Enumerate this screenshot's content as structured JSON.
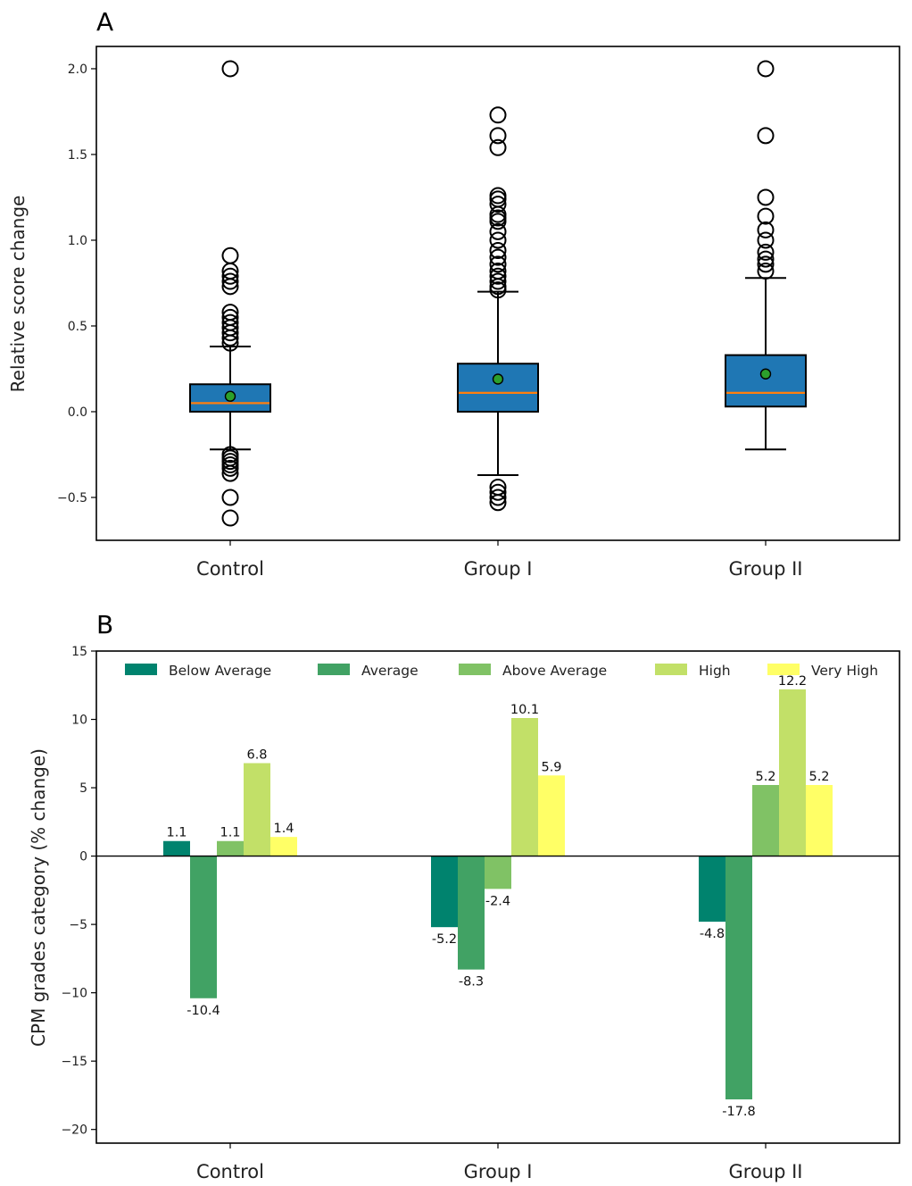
{
  "chart_data": [
    {
      "panel": "A",
      "type": "box",
      "ylabel": "Relative score change",
      "xlabel": "",
      "ylim": [
        -0.75,
        2.13
      ],
      "yticks": [
        -0.5,
        0.0,
        0.5,
        1.0,
        1.5,
        2.0
      ],
      "ytick_labels": [
        "−0.5",
        "0.0",
        "0.5",
        "1.0",
        "1.5",
        "2.0"
      ],
      "categories": [
        "Control",
        "Group I",
        "Group II"
      ],
      "boxes": [
        {
          "category": "Control",
          "q1": 0.0,
          "median": 0.05,
          "q3": 0.16,
          "mean": 0.09,
          "whisker_low": -0.22,
          "whisker_high": 0.38,
          "outliers": [
            2.0,
            0.91,
            0.82,
            0.79,
            0.76,
            0.73,
            0.58,
            0.55,
            0.52,
            0.49,
            0.46,
            0.43,
            0.4,
            -0.25,
            -0.27,
            -0.29,
            -0.31,
            -0.33,
            -0.36,
            -0.5,
            -0.62
          ]
        },
        {
          "category": "Group I",
          "q1": 0.0,
          "median": 0.11,
          "q3": 0.28,
          "mean": 0.19,
          "whisker_low": -0.37,
          "whisker_high": 0.7,
          "outliers": [
            1.73,
            1.61,
            1.54,
            1.26,
            1.24,
            1.21,
            1.15,
            1.13,
            1.11,
            1.05,
            1.0,
            0.94,
            0.9,
            0.86,
            0.82,
            0.79,
            0.76,
            0.73,
            0.71,
            -0.44,
            -0.47,
            -0.5,
            -0.53
          ]
        },
        {
          "category": "Group II",
          "q1": 0.03,
          "median": 0.11,
          "q3": 0.33,
          "mean": 0.22,
          "whisker_low": -0.22,
          "whisker_high": 0.78,
          "outliers": [
            2.0,
            1.61,
            1.25,
            1.14,
            1.06,
            1.0,
            0.93,
            0.89,
            0.86,
            0.82
          ]
        }
      ],
      "colors": {
        "box": "#1f77b4",
        "median": "#ff7f0e",
        "mean": "#2ca02c"
      },
      "grid": false
    },
    {
      "panel": "B",
      "type": "bar",
      "ylabel": "CPM grades category (% change)",
      "xlabel": "",
      "ylim": [
        -21,
        15
      ],
      "yticks": [
        -20,
        -15,
        -10,
        -5,
        0,
        5,
        10,
        15
      ],
      "ytick_labels": [
        "−20",
        "−15",
        "−10",
        "−5",
        "0",
        "5",
        "10",
        "15"
      ],
      "categories": [
        "Control",
        "Group I",
        "Group II"
      ],
      "series": [
        {
          "name": "Below Average",
          "color": "#00836e",
          "values": [
            1.1,
            -5.2,
            -4.8
          ],
          "labels": [
            "1.1",
            "-5.2",
            "-4.8"
          ]
        },
        {
          "name": "Average",
          "color": "#41a264",
          "values": [
            -10.4,
            -8.3,
            -17.8
          ],
          "labels": [
            "-10.4",
            "-8.3",
            "-17.8"
          ]
        },
        {
          "name": "Above Average",
          "color": "#80c265",
          "values": [
            1.1,
            -2.4,
            5.2
          ],
          "labels": [
            "1.1",
            "-2.4",
            "5.2"
          ]
        },
        {
          "name": "High",
          "color": "#c2e068",
          "values": [
            6.8,
            10.1,
            12.2
          ],
          "labels": [
            "6.8",
            "10.1",
            "12.2"
          ]
        },
        {
          "name": "Very High",
          "color": "#ffff66",
          "values": [
            1.4,
            5.9,
            5.2
          ],
          "labels": [
            "1.4",
            "5.9",
            "5.2"
          ]
        }
      ],
      "legend": "top",
      "grid": false
    }
  ]
}
